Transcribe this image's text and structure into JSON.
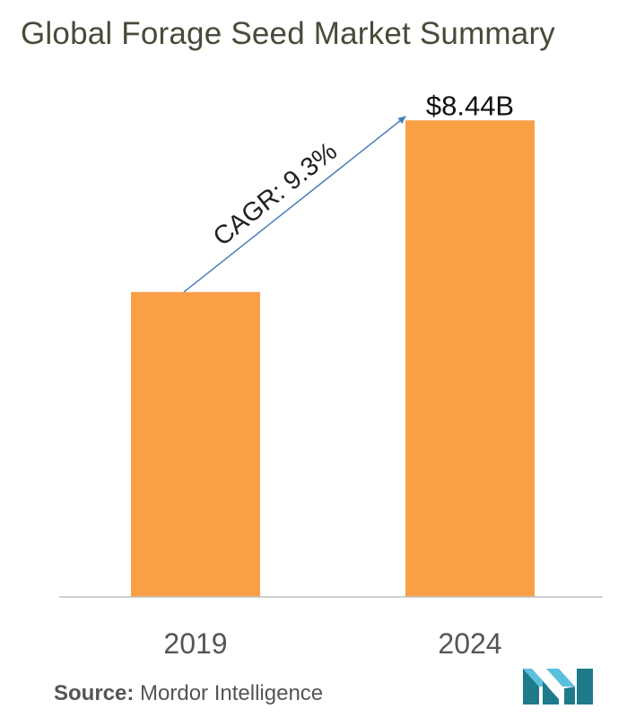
{
  "chart_data": {
    "type": "bar",
    "title": "Global Forage Seed Market Summary",
    "categories": [
      "2019",
      "2024"
    ],
    "values": [
      5.4,
      8.44
    ],
    "value_labels": [
      "",
      "$8.44B"
    ],
    "unit": "USD billion",
    "ylim": [
      0,
      10
    ],
    "annotation": {
      "text": "CAGR: 9.3%",
      "from_category": "2019",
      "to_category": "2024",
      "type": "arrow"
    },
    "xlabel": "",
    "ylabel": "",
    "grid": false,
    "legend": "none"
  },
  "source": {
    "label": "Source:",
    "text": "Mordor Intelligence"
  },
  "colors": {
    "bar": "#F9A047",
    "arrow": "#4A7EBB",
    "axis": "#BFBFBF",
    "title": "#4A4A3A",
    "logo_dark": "#1F7A8C",
    "logo_light": "#5BC0DE"
  },
  "logo": {
    "icon": "mordor-intelligence-logo-icon"
  }
}
